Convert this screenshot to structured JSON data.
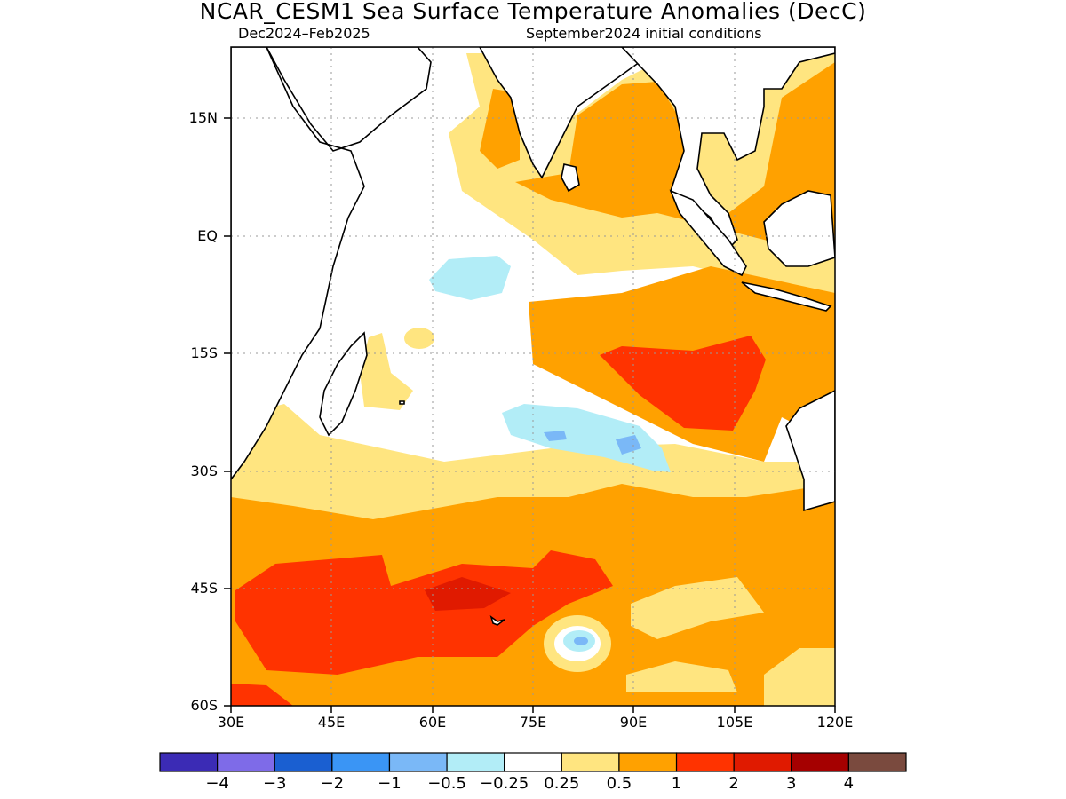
{
  "title": "NCAR_CESM1 Sea Surface Temperature Anomalies (DecC)",
  "subtitle_left": "Dec2024–Feb2025",
  "subtitle_right": "September2024 initial conditions",
  "map": {
    "lon_range": [
      30,
      120
    ],
    "lat_range": [
      -60,
      24
    ],
    "grid": "dotted",
    "y_ticks": [
      "15N",
      "EQ",
      "15S",
      "30S",
      "45S",
      "60S"
    ],
    "x_ticks": [
      "30E",
      "45E",
      "60E",
      "75E",
      "90E",
      "105E",
      "120E"
    ]
  },
  "colorbar": {
    "colors": [
      "#3b2bb5",
      "#7e6be8",
      "#1a5fd1",
      "#3a95f5",
      "#7ab8f7",
      "#b2edf7",
      "#ffffff",
      "#ffe580",
      "#ffa100",
      "#ff3300",
      "#e01a00",
      "#a50000",
      "#7a4a3e"
    ],
    "labels": [
      "−4",
      "−3",
      "−2",
      "−1",
      "−0.5",
      "−0.25",
      "0.25",
      "0.5",
      "1",
      "2",
      "3",
      "4"
    ]
  }
}
